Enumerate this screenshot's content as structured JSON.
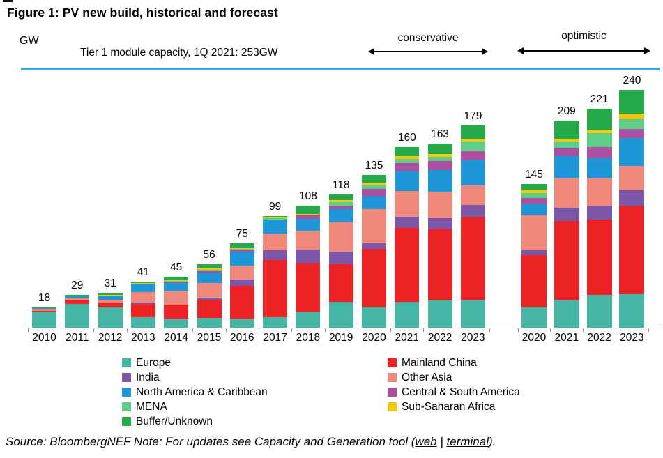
{
  "header": {
    "title": "Figure 1:  PV new build, historical and forecast",
    "unit_label": "GW",
    "reference_line_label": "Tier 1 module capacity, 1Q 2021: 253GW",
    "scenarios": {
      "conservative": "conservative",
      "optimistic": "optimistic"
    }
  },
  "footer": {
    "source_prefix": "Source: BloombergNEF Note: For updates see Capacity and Generation tool (",
    "link_web": "web",
    "separator": " | ",
    "link_terminal": "terminal",
    "suffix": ")."
  },
  "chart_data": {
    "type": "bar",
    "stacked": true,
    "unit": "GW",
    "title": "PV new build, historical and forecast",
    "categories": [
      "2010",
      "2011",
      "2012",
      "2013",
      "2014",
      "2015",
      "2016",
      "2017",
      "2018",
      "2019",
      "2020",
      "2021",
      "2022",
      "2023",
      "2020",
      "2021",
      "2022",
      "2023"
    ],
    "totals": [
      18,
      29,
      31,
      41,
      45,
      56,
      75,
      99,
      108,
      118,
      135,
      160,
      163,
      179,
      145,
      209,
      221,
      240
    ],
    "group_split_index": 14,
    "scenario_groups": [
      {
        "name": "conservative",
        "label": "conservative",
        "bars": "2010-2023 (forecast 2020-2023)"
      },
      {
        "name": "optimistic",
        "label": "optimistic",
        "bars": "2020-2023"
      }
    ],
    "reference_line": {
      "label": "Tier 1 module capacity, 1Q 2021: 253GW",
      "value_gw": 253,
      "color": "#29ABE2"
    },
    "ylim": [
      0,
      253
    ],
    "grid": false,
    "legend_position": "bottom",
    "series": [
      {
        "name": "Europe",
        "color": "#45B6A3",
        "values": [
          14.2,
          21.3,
          18.0,
          9.0,
          8.0,
          8.5,
          8.0,
          9.3,
          13.5,
          23.0,
          17.7,
          23.0,
          24.0,
          25.0,
          20.3,
          28.2,
          33.3,
          34.0
        ]
      },
      {
        "name": "Mainland China",
        "color": "#ED2224",
        "values": [
          0.4,
          3.0,
          3.6,
          12.0,
          11.5,
          15.5,
          29.0,
          50.5,
          44.0,
          33.0,
          52.0,
          65.0,
          63.0,
          73.0,
          53.0,
          79.8,
          76.2,
          89.0
        ]
      },
      {
        "name": "India",
        "color": "#7C57A9",
        "values": [
          0.1,
          0.2,
          0.5,
          1.1,
          1.0,
          2.1,
          5.5,
          9.0,
          11.4,
          11.0,
          5.2,
          10.0,
          10.0,
          10.4,
          4.7,
          13.4,
          13.1,
          16.0
        ]
      },
      {
        "name": "Other Asia",
        "color": "#F0897B",
        "values": [
          2.0,
          2.1,
          2.5,
          9.5,
          12.0,
          13.4,
          12.5,
          14.5,
          16.7,
          26.5,
          30.0,
          23.0,
          23.7,
          17.7,
          35.3,
          30.0,
          28.6,
          24.3
        ]
      },
      {
        "name": "North America & Caribbean",
        "color": "#1E96D7",
        "values": [
          0.6,
          1.6,
          3.2,
          6.4,
          7.0,
          9.0,
          12.5,
          11.5,
          10.5,
          11.5,
          11.5,
          17.3,
          18.7,
          21.9,
          11.7,
          21.6,
          20.2,
          28.6
        ]
      },
      {
        "name": "Central & South America",
        "color": "#AD4FA0",
        "values": [
          0.1,
          0.2,
          0.4,
          0.5,
          0.8,
          1.5,
          1.0,
          1.0,
          3.7,
          3.0,
          6.2,
          7.7,
          7.9,
          8.3,
          6.0,
          8.9,
          10.7,
          9.1
        ]
      },
      {
        "name": "MENA",
        "color": "#5FCE87",
        "values": [
          0.1,
          0.2,
          0.4,
          0.6,
          1.0,
          1.5,
          1.5,
          1.2,
          0.5,
          3.0,
          3.7,
          3.5,
          3.7,
          8.3,
          4.7,
          6.5,
          14.3,
          10.0
        ]
      },
      {
        "name": "Sub-Saharan Africa",
        "color": "#F3C70E",
        "values": [
          0.1,
          0.1,
          0.2,
          0.4,
          0.7,
          1.0,
          0.5,
          1.0,
          0.3,
          1.8,
          2.0,
          2.3,
          2.5,
          2.0,
          3.2,
          2.8,
          2.8,
          5.0
        ]
      },
      {
        "name": "Buffer/Unknown",
        "color": "#26A94A",
        "values": [
          0.4,
          0.3,
          2.2,
          1.5,
          3.0,
          3.5,
          4.5,
          1.0,
          7.4,
          5.2,
          6.7,
          8.2,
          9.5,
          12.4,
          6.1,
          17.8,
          21.8,
          24.0
        ]
      }
    ],
    "legend": {
      "column1": [
        "Europe",
        "India",
        "North America & Caribbean",
        "MENA",
        "Buffer/Unknown"
      ],
      "column2": [
        "Mainland China",
        "Other Asia",
        "Central & South America",
        "Sub-Saharan Africa"
      ]
    }
  }
}
